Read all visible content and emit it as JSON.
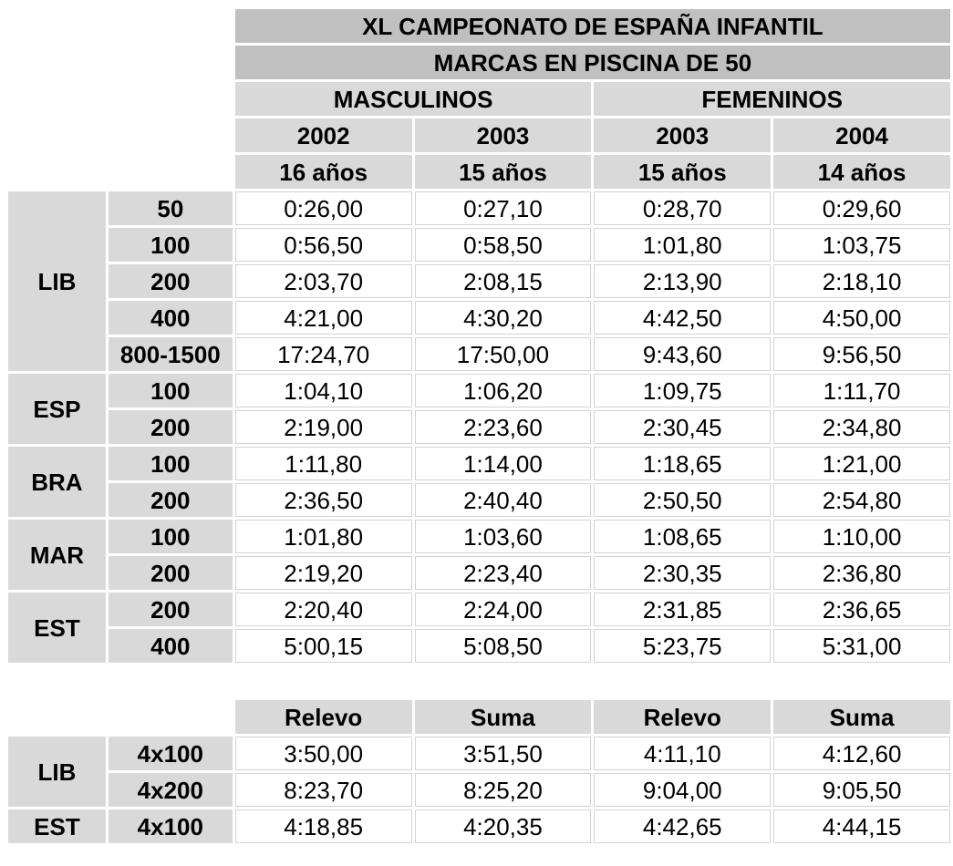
{
  "colors": {
    "title_bg": "#c0c0c0",
    "header_bg": "#d9d9d9",
    "cell_border": "#d2d2d2",
    "text": "#000000"
  },
  "main_table": {
    "title": "XL CAMPEONATO DE ESPAÑA INFANTIL",
    "subtitle": "MARCAS EN PISCINA DE 50",
    "gender_headers": [
      "MASCULINOS",
      "FEMENINOS"
    ],
    "year_headers": [
      "2002",
      "2003",
      "2003",
      "2004"
    ],
    "age_headers": [
      "16 años",
      "15 años",
      "15 años",
      "14 años"
    ],
    "row_groups": [
      {
        "group": "LIB",
        "rows": [
          {
            "distance": "50",
            "values": [
              "0:26,00",
              "0:27,10",
              "0:28,70",
              "0:29,60"
            ]
          },
          {
            "distance": "100",
            "values": [
              "0:56,50",
              "0:58,50",
              "1:01,80",
              "1:03,75"
            ]
          },
          {
            "distance": "200",
            "values": [
              "2:03,70",
              "2:08,15",
              "2:13,90",
              "2:18,10"
            ]
          },
          {
            "distance": "400",
            "values": [
              "4:21,00",
              "4:30,20",
              "4:42,50",
              "4:50,00"
            ]
          },
          {
            "distance": "800-1500",
            "values": [
              "17:24,70",
              "17:50,00",
              "9:43,60",
              "9:56,50"
            ]
          }
        ]
      },
      {
        "group": "ESP",
        "rows": [
          {
            "distance": "100",
            "values": [
              "1:04,10",
              "1:06,20",
              "1:09,75",
              "1:11,70"
            ]
          },
          {
            "distance": "200",
            "values": [
              "2:19,00",
              "2:23,60",
              "2:30,45",
              "2:34,80"
            ]
          }
        ]
      },
      {
        "group": "BRA",
        "rows": [
          {
            "distance": "100",
            "values": [
              "1:11,80",
              "1:14,00",
              "1:18,65",
              "1:21,00"
            ]
          },
          {
            "distance": "200",
            "values": [
              "2:36,50",
              "2:40,40",
              "2:50,50",
              "2:54,80"
            ]
          }
        ]
      },
      {
        "group": "MAR",
        "rows": [
          {
            "distance": "100",
            "values": [
              "1:01,80",
              "1:03,60",
              "1:08,65",
              "1:10,00"
            ]
          },
          {
            "distance": "200",
            "values": [
              "2:19,20",
              "2:23,40",
              "2:30,35",
              "2:36,80"
            ]
          }
        ]
      },
      {
        "group": "EST",
        "rows": [
          {
            "distance": "200",
            "values": [
              "2:20,40",
              "2:24,00",
              "2:31,85",
              "2:36,65"
            ]
          },
          {
            "distance": "400",
            "values": [
              "5:00,15",
              "5:08,50",
              "5:23,75",
              "5:31,00"
            ]
          }
        ]
      }
    ]
  },
  "relay_table": {
    "column_headers": [
      "Relevo",
      "Suma",
      "Relevo",
      "Suma"
    ],
    "row_groups": [
      {
        "group": "LIB",
        "rows": [
          {
            "distance": "4x100",
            "values": [
              "3:50,00",
              "3:51,50",
              "4:11,10",
              "4:12,60"
            ]
          },
          {
            "distance": "4x200",
            "values": [
              "8:23,70",
              "8:25,20",
              "9:04,00",
              "9:05,50"
            ]
          }
        ]
      },
      {
        "group": "EST",
        "rows": [
          {
            "distance": "4x100",
            "values": [
              "4:18,85",
              "4:20,35",
              "4:42,65",
              "4:44,15"
            ]
          }
        ]
      }
    ]
  }
}
